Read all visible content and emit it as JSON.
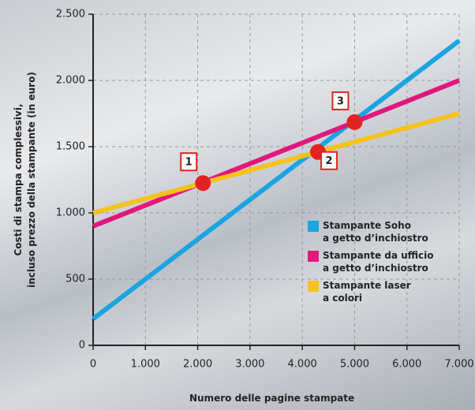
{
  "chart_data": {
    "type": "line",
    "xlabel": "Numero delle pagine stampate",
    "ylabel": "Costi di stampa complessivi,\nincluso prezzo della stampante (in euro)",
    "x": [
      0,
      7000
    ],
    "series": [
      {
        "name": "Stampante Soho\na getto d’inchiostro",
        "color": "#1ba4e2",
        "values": [
          200,
          2300
        ]
      },
      {
        "name": "Stampante da ufficio\na getto d’inchiostro",
        "color": "#e2177c",
        "values": [
          900,
          2000
        ]
      },
      {
        "name": "Stampante laser\na colori",
        "color": "#f4c21c",
        "values": [
          1000,
          1750
        ]
      }
    ],
    "annotations": [
      {
        "label": "1",
        "x": 2100,
        "y": 1225
      },
      {
        "label": "2",
        "x": 4300,
        "y": 1460
      },
      {
        "label": "3",
        "x": 5000,
        "y": 1685
      }
    ],
    "xlim": [
      0,
      7000
    ],
    "xticks": [
      0,
      {
        "value": 1000,
        "label": "1.000"
      },
      {
        "value": 2000,
        "label": "2.000"
      },
      {
        "value": 3000,
        "label": "3.000"
      },
      {
        "value": 4000,
        "label": "4.000"
      },
      {
        "value": 5000,
        "label": "5.000"
      },
      {
        "value": 6000,
        "label": "6.000"
      },
      {
        "value": 7000,
        "label": "7.000"
      }
    ],
    "ylim": [
      0,
      2500
    ],
    "yticks": [
      0,
      500,
      {
        "value": 1000,
        "label": "1.000"
      },
      {
        "value": 1500,
        "label": "1.500"
      },
      {
        "value": 2000,
        "label": "2.000"
      },
      {
        "value": 2500,
        "label": "2.500"
      }
    ],
    "grid": true,
    "legend": "right"
  }
}
